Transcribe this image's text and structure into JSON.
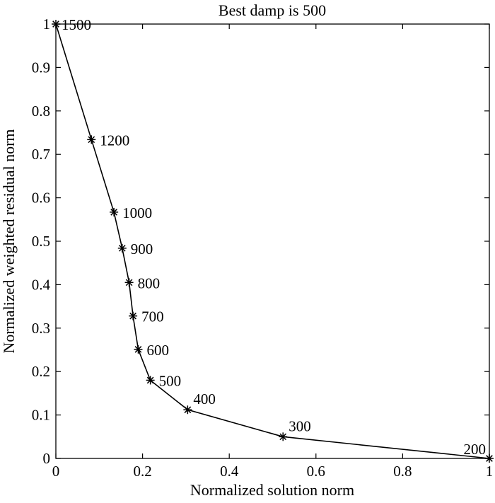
{
  "chart_data": {
    "type": "line",
    "title": "Best damp is 500",
    "xlabel": "Normalized solution norm",
    "ylabel": "Normalized weighted residual norm",
    "xlim": [
      0,
      1
    ],
    "ylim": [
      0,
      1
    ],
    "grid": false,
    "legend": "none",
    "marker": "asterisk",
    "line_color": "#000000",
    "x_ticks": [
      {
        "value": 0,
        "label": "0"
      },
      {
        "value": 0.2,
        "label": "0.2"
      },
      {
        "value": 0.4,
        "label": "0.4"
      },
      {
        "value": 0.6,
        "label": "0.6"
      },
      {
        "value": 0.8,
        "label": "0.8"
      },
      {
        "value": 1,
        "label": "1"
      }
    ],
    "y_ticks": [
      {
        "value": 0,
        "label": "0"
      },
      {
        "value": 0.1,
        "label": "0.1"
      },
      {
        "value": 0.2,
        "label": "0.2"
      },
      {
        "value": 0.3,
        "label": "0.3"
      },
      {
        "value": 0.4,
        "label": "0.4"
      },
      {
        "value": 0.5,
        "label": "0.5"
      },
      {
        "value": 0.6,
        "label": "0.6"
      },
      {
        "value": 0.7,
        "label": "0.7"
      },
      {
        "value": 0.8,
        "label": "0.8"
      },
      {
        "value": 0.9,
        "label": "0.9"
      },
      {
        "value": 1,
        "label": "1"
      }
    ],
    "points": [
      {
        "x": 0.0,
        "y": 1.0,
        "label": "1500"
      },
      {
        "x": 0.082,
        "y": 0.734,
        "label": "1200"
      },
      {
        "x": 0.134,
        "y": 0.567,
        "label": "1000"
      },
      {
        "x": 0.153,
        "y": 0.484,
        "label": "900"
      },
      {
        "x": 0.169,
        "y": 0.405,
        "label": "800"
      },
      {
        "x": 0.178,
        "y": 0.328,
        "label": "700"
      },
      {
        "x": 0.19,
        "y": 0.251,
        "label": "600"
      },
      {
        "x": 0.218,
        "y": 0.18,
        "label": "500"
      },
      {
        "x": 0.304,
        "y": 0.112,
        "label": "400"
      },
      {
        "x": 0.524,
        "y": 0.05,
        "label": "300"
      },
      {
        "x": 1.0,
        "y": 0.0,
        "label": "200"
      }
    ]
  }
}
